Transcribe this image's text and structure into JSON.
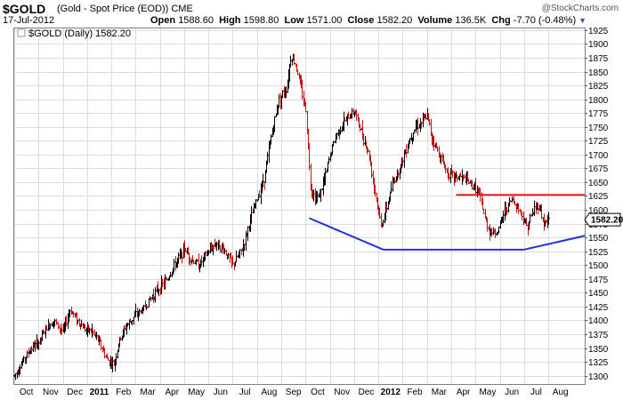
{
  "header": {
    "symbol": "$GOLD",
    "description": "(Gold - Spot Price (EOD)) CME",
    "brand": "@StockCharts.com",
    "date": "17-Jul-2012",
    "open_label": "Open",
    "open": "1588.60",
    "high_label": "High",
    "high": "1598.80",
    "low_label": "Low",
    "low": "1571.00",
    "close_label": "Close",
    "close": "1582.20",
    "volume_label": "Volume",
    "volume": "136.5K",
    "chg_label": "Chg",
    "chg": "-7.70 (-0.48%)"
  },
  "chart_data": {
    "type": "ohlc",
    "legend": "$GOLD (Daily) 1582.20",
    "last_price_label": "1582.20",
    "ylim": [
      1285,
      1928
    ],
    "y_ticks": [
      1300,
      1325,
      1350,
      1375,
      1400,
      1425,
      1450,
      1475,
      1500,
      1525,
      1550,
      1575,
      1600,
      1625,
      1650,
      1675,
      1700,
      1725,
      1750,
      1775,
      1800,
      1825,
      1850,
      1875,
      1900,
      1925
    ],
    "x_labels": [
      {
        "t": 0.5,
        "label": "Oct",
        "bold": false
      },
      {
        "t": 1.5,
        "label": "Nov",
        "bold": false
      },
      {
        "t": 2.5,
        "label": "Dec",
        "bold": false
      },
      {
        "t": 3.5,
        "label": "2011",
        "bold": true
      },
      {
        "t": 4.5,
        "label": "Feb",
        "bold": false
      },
      {
        "t": 5.5,
        "label": "Mar",
        "bold": false
      },
      {
        "t": 6.5,
        "label": "Apr",
        "bold": false
      },
      {
        "t": 7.5,
        "label": "May",
        "bold": false
      },
      {
        "t": 8.5,
        "label": "Jun",
        "bold": false
      },
      {
        "t": 9.5,
        "label": "Jul",
        "bold": false
      },
      {
        "t": 10.5,
        "label": "Aug",
        "bold": false
      },
      {
        "t": 11.5,
        "label": "Sep",
        "bold": false
      },
      {
        "t": 12.5,
        "label": "Oct",
        "bold": false
      },
      {
        "t": 13.5,
        "label": "Nov",
        "bold": false
      },
      {
        "t": 14.5,
        "label": "Dec",
        "bold": false
      },
      {
        "t": 15.5,
        "label": "2012",
        "bold": true
      },
      {
        "t": 16.5,
        "label": "Feb",
        "bold": false
      },
      {
        "t": 17.5,
        "label": "Mar",
        "bold": false
      },
      {
        "t": 18.5,
        "label": "Apr",
        "bold": false
      },
      {
        "t": 19.5,
        "label": "May",
        "bold": false
      },
      {
        "t": 20.5,
        "label": "Jun",
        "bold": false
      },
      {
        "t": 21.5,
        "label": "Jul",
        "bold": false
      },
      {
        "t": 22.5,
        "label": "Aug",
        "bold": false
      }
    ],
    "x_range": [
      0,
      23.5
    ],
    "price_path": [
      [
        0.0,
        1300
      ],
      [
        0.4,
        1330
      ],
      [
        0.7,
        1350
      ],
      [
        1.0,
        1360
      ],
      [
        1.3,
        1385
      ],
      [
        1.6,
        1400
      ],
      [
        2.0,
        1380
      ],
      [
        2.3,
        1420
      ],
      [
        2.6,
        1400
      ],
      [
        2.9,
        1385
      ],
      [
        3.2,
        1380
      ],
      [
        3.5,
        1360
      ],
      [
        3.8,
        1330
      ],
      [
        4.1,
        1320
      ],
      [
        4.3,
        1360
      ],
      [
        4.6,
        1390
      ],
      [
        5.0,
        1410
      ],
      [
        5.3,
        1420
      ],
      [
        5.6,
        1440
      ],
      [
        6.0,
        1460
      ],
      [
        6.3,
        1475
      ],
      [
        6.6,
        1500
      ],
      [
        7.0,
        1530
      ],
      [
        7.3,
        1510
      ],
      [
        7.6,
        1500
      ],
      [
        8.0,
        1525
      ],
      [
        8.3,
        1540
      ],
      [
        8.6,
        1530
      ],
      [
        9.0,
        1500
      ],
      [
        9.4,
        1530
      ],
      [
        9.7,
        1580
      ],
      [
        10.0,
        1620
      ],
      [
        10.3,
        1660
      ],
      [
        10.6,
        1740
      ],
      [
        10.9,
        1800
      ],
      [
        11.2,
        1820
      ],
      [
        11.4,
        1880
      ],
      [
        11.6,
        1860
      ],
      [
        11.8,
        1820
      ],
      [
        12.0,
        1780
      ],
      [
        12.2,
        1640
      ],
      [
        12.4,
        1620
      ],
      [
        12.6,
        1630
      ],
      [
        12.8,
        1660
      ],
      [
        13.0,
        1700
      ],
      [
        13.3,
        1740
      ],
      [
        13.6,
        1760
      ],
      [
        14.0,
        1780
      ],
      [
        14.3,
        1740
      ],
      [
        14.6,
        1700
      ],
      [
        14.9,
        1620
      ],
      [
        15.1,
        1570
      ],
      [
        15.3,
        1600
      ],
      [
        15.6,
        1650
      ],
      [
        15.9,
        1680
      ],
      [
        16.2,
        1720
      ],
      [
        16.5,
        1750
      ],
      [
        16.8,
        1760
      ],
      [
        17.0,
        1770
      ],
      [
        17.2,
        1730
      ],
      [
        17.5,
        1700
      ],
      [
        17.8,
        1670
      ],
      [
        18.1,
        1660
      ],
      [
        18.4,
        1660
      ],
      [
        18.7,
        1650
      ],
      [
        19.0,
        1640
      ],
      [
        19.2,
        1620
      ],
      [
        19.4,
        1580
      ],
      [
        19.6,
        1560
      ],
      [
        19.9,
        1560
      ],
      [
        20.2,
        1600
      ],
      [
        20.5,
        1620
      ],
      [
        20.8,
        1600
      ],
      [
        21.1,
        1570
      ],
      [
        21.4,
        1600
      ],
      [
        21.6,
        1610
      ],
      [
        21.8,
        1575
      ],
      [
        22.0,
        1582
      ]
    ],
    "annotations": {
      "resistance": {
        "x0": 18.2,
        "x1": 23.5,
        "y": 1627,
        "color": "#dd2222"
      },
      "support_left": {
        "x0": 12.15,
        "x1": 15.2,
        "y0": 1585,
        "y1": 1528,
        "color": "#2233dd"
      },
      "support_flat": {
        "x0": 15.2,
        "x1": 21.0,
        "y0": 1528,
        "y1": 1528,
        "color": "#2233dd"
      },
      "support_right": {
        "x0": 21.0,
        "x1": 23.5,
        "y0": 1528,
        "y1": 1553,
        "color": "#2233dd"
      }
    },
    "colors": {
      "up": "#000000",
      "down": "#cc1111",
      "grid": "#dcdcdc"
    }
  }
}
